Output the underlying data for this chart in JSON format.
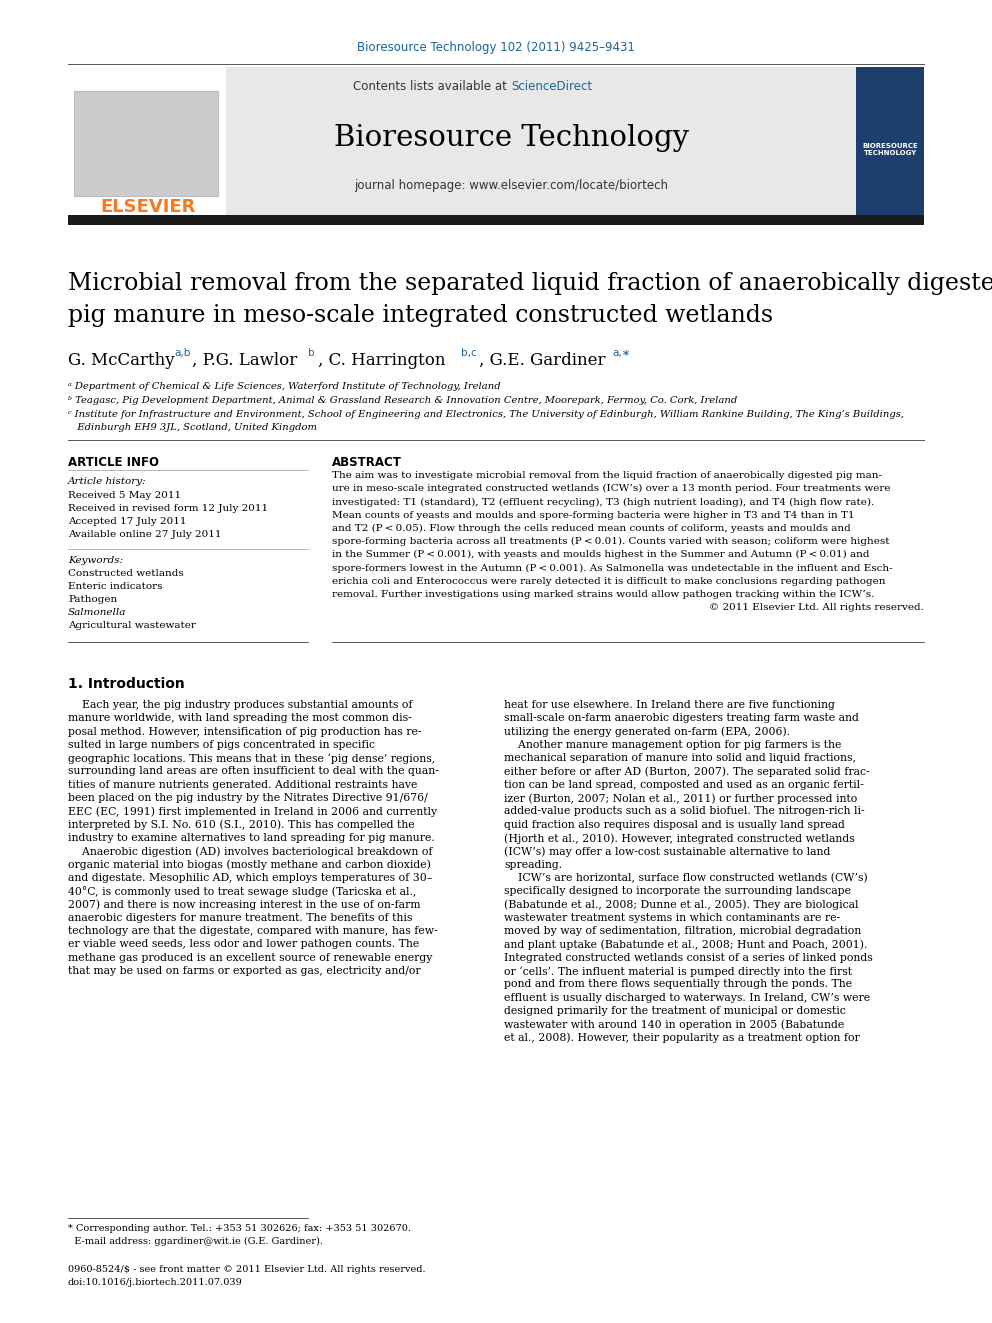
{
  "journal_ref": "Bioresource Technology 102 (2011) 9425–9431",
  "contents_line": "Contents lists available at ScienceDirect",
  "sciencedirect_color": "#1a6496",
  "journal_name": "Bioresource Technology",
  "homepage_line": "journal homepage: www.elsevier.com/locate/biortech",
  "elsevier_color": "#f47920",
  "header_bg": "#e8e8e8",
  "black_bar_color": "#1a1a1a",
  "title_line1": "Microbial removal from the separated liquid fraction of anaerobically digested",
  "title_line2": "pig manure in meso-scale integrated constructed wetlands",
  "article_info_title": "ARTICLE INFO",
  "article_history_label": "Article history:",
  "received": "Received 5 May 2011",
  "revised": "Received in revised form 12 July 2011",
  "accepted": "Accepted 17 July 2011",
  "available": "Available online 27 July 2011",
  "keywords_label": "Keywords:",
  "keywords": [
    "Constructed wetlands",
    "Enteric indicators",
    "Pathogen",
    "Salmonella",
    "Agricultural wastewater"
  ],
  "abstract_title": "ABSTRACT",
  "intro_title": "1. Introduction",
  "footnote_line1": "* Corresponding author. Tel.: +353 51 302626; fax: +353 51 302670.",
  "footnote_line2": "  E-mail address: ggardiner@wit.ie (G.E. Gardiner).",
  "issn_line1": "0960-8524/$ - see front matter © 2011 Elsevier Ltd. All rights reserved.",
  "issn_line2": "doi:10.1016/j.biortech.2011.07.039",
  "link_color": "#1a6496",
  "text_color": "#000000",
  "bg_color": "#ffffff",
  "abstract_lines": [
    "The aim was to investigate microbial removal from the liquid fraction of anaerobically digested pig man-",
    "ure in meso-scale integrated constructed wetlands (ICW’s) over a 13 month period. Four treatments were",
    "investigated: T1 (standard), T2 (effluent recycling), T3 (high nutrient loading), and T4 (high flow rate).",
    "Mean counts of yeasts and moulds and spore-forming bacteria were higher in T3 and T4 than in T1",
    "and T2 (P < 0.05). Flow through the cells reduced mean counts of coliform, yeasts and moulds and",
    "spore-forming bacteria across all treatments (P < 0.01). Counts varied with season; coliform were highest",
    "in the Summer (P < 0.001), with yeasts and moulds highest in the Summer and Autumn (P < 0.01) and",
    "spore-formers lowest in the Autumn (P < 0.001). As Salmonella was undetectable in the influent and Esch-",
    "erichia coli and Enterococcus were rarely detected it is difficult to make conclusions regarding pathogen",
    "removal. Further investigations using marked strains would allow pathogen tracking within the ICW’s.",
    "© 2011 Elsevier Ltd. All rights reserved."
  ],
  "intro1_lines": [
    "    Each year, the pig industry produces substantial amounts of",
    "manure worldwide, with land spreading the most common dis-",
    "posal method. However, intensification of pig production has re-",
    "sulted in large numbers of pigs concentrated in specific",
    "geographic locations. This means that in these ‘pig dense’ regions,",
    "surrounding land areas are often insufficient to deal with the quan-",
    "tities of manure nutrients generated. Additional restraints have",
    "been placed on the pig industry by the Nitrates Directive 91/676/",
    "EEC (EC, 1991) first implemented in Ireland in 2006 and currently",
    "interpreted by S.I. No. 610 (S.I., 2010). This has compelled the",
    "industry to examine alternatives to land spreading for pig manure.",
    "    Anaerobic digestion (AD) involves bacteriological breakdown of",
    "organic material into biogas (mostly methane and carbon dioxide)",
    "and digestate. Mesophilic AD, which employs temperatures of 30–",
    "40°C, is commonly used to treat sewage sludge (Taricska et al.,",
    "2007) and there is now increasing interest in the use of on-farm",
    "anaerobic digesters for manure treatment. The benefits of this",
    "technology are that the digestate, compared with manure, has few-",
    "er viable weed seeds, less odor and lower pathogen counts. The",
    "methane gas produced is an excellent source of renewable energy",
    "that may be used on farms or exported as gas, electricity and/or"
  ],
  "intro2_lines": [
    "heat for use elsewhere. In Ireland there are five functioning",
    "small-scale on-farm anaerobic digesters treating farm waste and",
    "utilizing the energy generated on-farm (EPA, 2006).",
    "    Another manure management option for pig farmers is the",
    "mechanical separation of manure into solid and liquid fractions,",
    "either before or after AD (Burton, 2007). The separated solid frac-",
    "tion can be land spread, composted and used as an organic fertil-",
    "izer (Burton, 2007; Nolan et al., 2011) or further processed into",
    "added-value products such as a solid biofuel. The nitrogen-rich li-",
    "quid fraction also requires disposal and is usually land spread",
    "(Hjorth et al., 2010). However, integrated constructed wetlands",
    "(ICW’s) may offer a low-cost sustainable alternative to land",
    "spreading.",
    "    ICW’s are horizontal, surface flow constructed wetlands (CW’s)",
    "specifically designed to incorporate the surrounding landscape",
    "(Babatunde et al., 2008; Dunne et al., 2005). They are biological",
    "wastewater treatment systems in which contaminants are re-",
    "moved by way of sedimentation, filtration, microbial degradation",
    "and plant uptake (Babatunde et al., 2008; Hunt and Poach, 2001).",
    "Integrated constructed wetlands consist of a series of linked ponds",
    "or ‘cells’. The influent material is pumped directly into the first",
    "pond and from there flows sequentially through the ponds. The",
    "effluent is usually discharged to waterways. In Ireland, CW’s were",
    "designed primarily for the treatment of municipal or domestic",
    "wastewater with around 140 in operation in 2005 (Babatunde",
    "et al., 2008). However, their popularity as a treatment option for"
  ]
}
